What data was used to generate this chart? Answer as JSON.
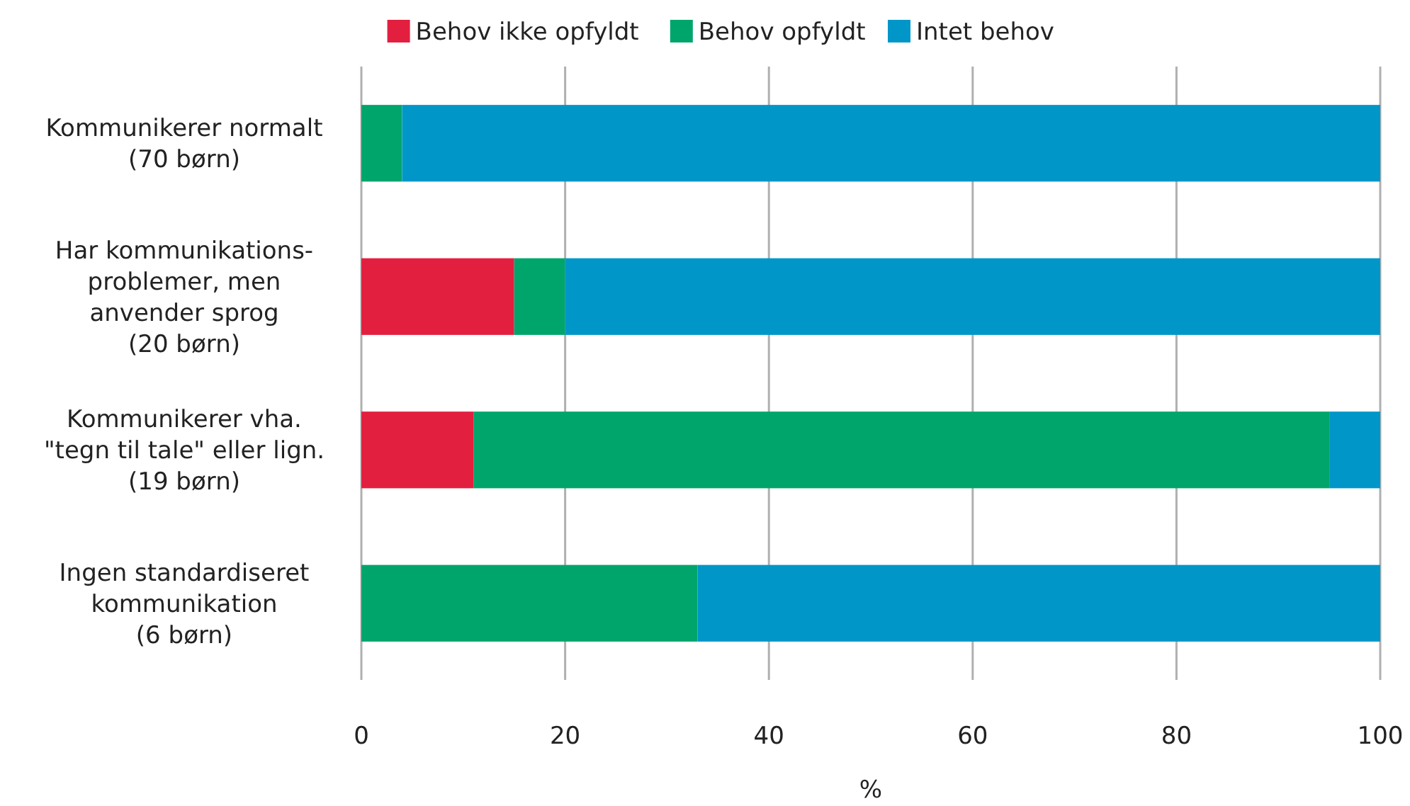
{
  "chart_data": {
    "type": "bar",
    "orientation": "horizontal",
    "stacked": true,
    "xlabel": "%",
    "categories": [
      "Kommunikerer normalt\n(70 børn)",
      "Har kommunikations-\nproblemer, men\nanvender sprog\n(20 børn)",
      "Kommunikerer vha.\n\"tegn til tale\" eller lign.\n(19 børn)",
      "Ingen standardiseret\nkommunikation\n(6 børn)"
    ],
    "series": [
      {
        "name": "Behov ikke opfyldt",
        "color": "#e31f40",
        "values": [
          0,
          15,
          11,
          0
        ]
      },
      {
        "name": "Behov opfyldt",
        "color": "#00a56c",
        "values": [
          4,
          5,
          84,
          33
        ]
      },
      {
        "name": "Intet behov",
        "color": "#0097c8",
        "values": [
          96,
          80,
          5,
          67
        ]
      }
    ],
    "xlim": [
      0,
      100
    ],
    "xticks": [
      0,
      20,
      40,
      60,
      80,
      100
    ],
    "grid": "x",
    "legend": "top"
  }
}
